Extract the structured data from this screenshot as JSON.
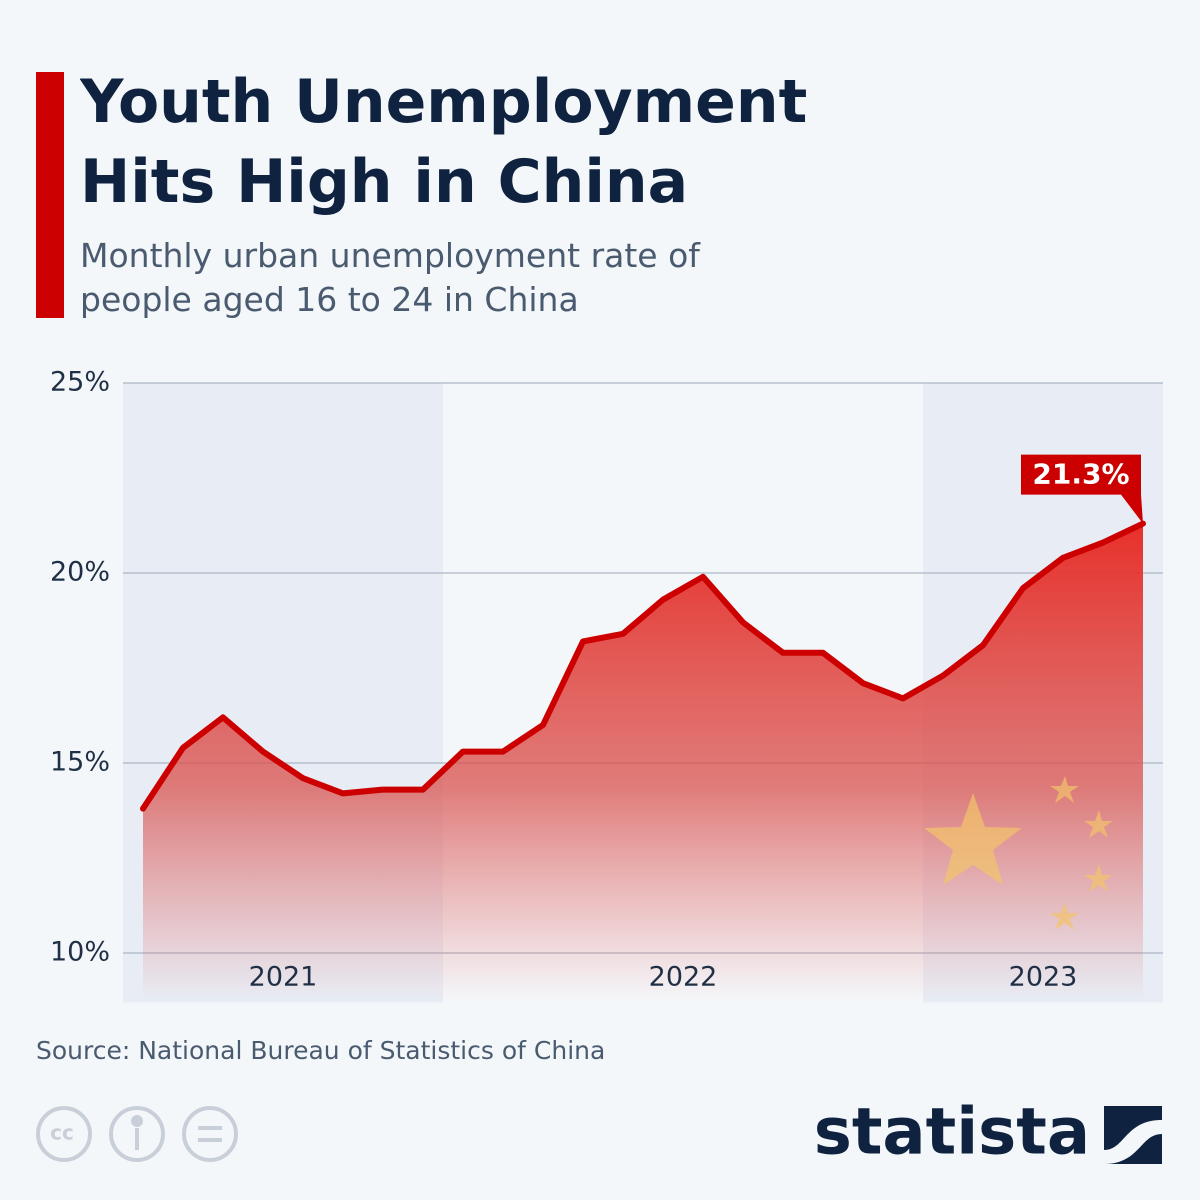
{
  "chart_data": {
    "type": "area",
    "title": "Youth Unemployment Hits High in China",
    "subtitle": "Monthly urban unemployment rate of people aged 16 to 24 in China",
    "categories": [
      "2021",
      null,
      null,
      null,
      null,
      null,
      null,
      null,
      "2022",
      null,
      null,
      null,
      null,
      null,
      null,
      null,
      null,
      null,
      null,
      null,
      "2023",
      null,
      null,
      null,
      null,
      null
    ],
    "values": [
      13.8,
      15.4,
      16.2,
      15.3,
      14.6,
      14.2,
      14.3,
      14.3,
      15.3,
      15.3,
      16.0,
      18.2,
      18.4,
      19.3,
      19.9,
      18.7,
      17.9,
      17.9,
      17.1,
      16.7,
      17.3,
      18.1,
      19.6,
      20.4,
      20.8,
      21.3
    ],
    "value_labels": [
      null,
      null,
      null,
      null,
      null,
      null,
      null,
      null,
      null,
      null,
      null,
      null,
      null,
      null,
      null,
      null,
      null,
      null,
      null,
      null,
      null,
      null,
      null,
      null,
      null,
      "21.3%"
    ],
    "color": "#cc0000",
    "ylim": [
      8.7,
      25
    ],
    "yticks": [
      {
        "value": 10,
        "label": "10%"
      },
      {
        "value": 15,
        "label": "15%"
      },
      {
        "value": 20,
        "label": "20%"
      },
      {
        "value": 25,
        "label": "25%"
      }
    ],
    "grid": true,
    "source": "Source: National Bureau of Statistics of China",
    "logo": "statista"
  }
}
